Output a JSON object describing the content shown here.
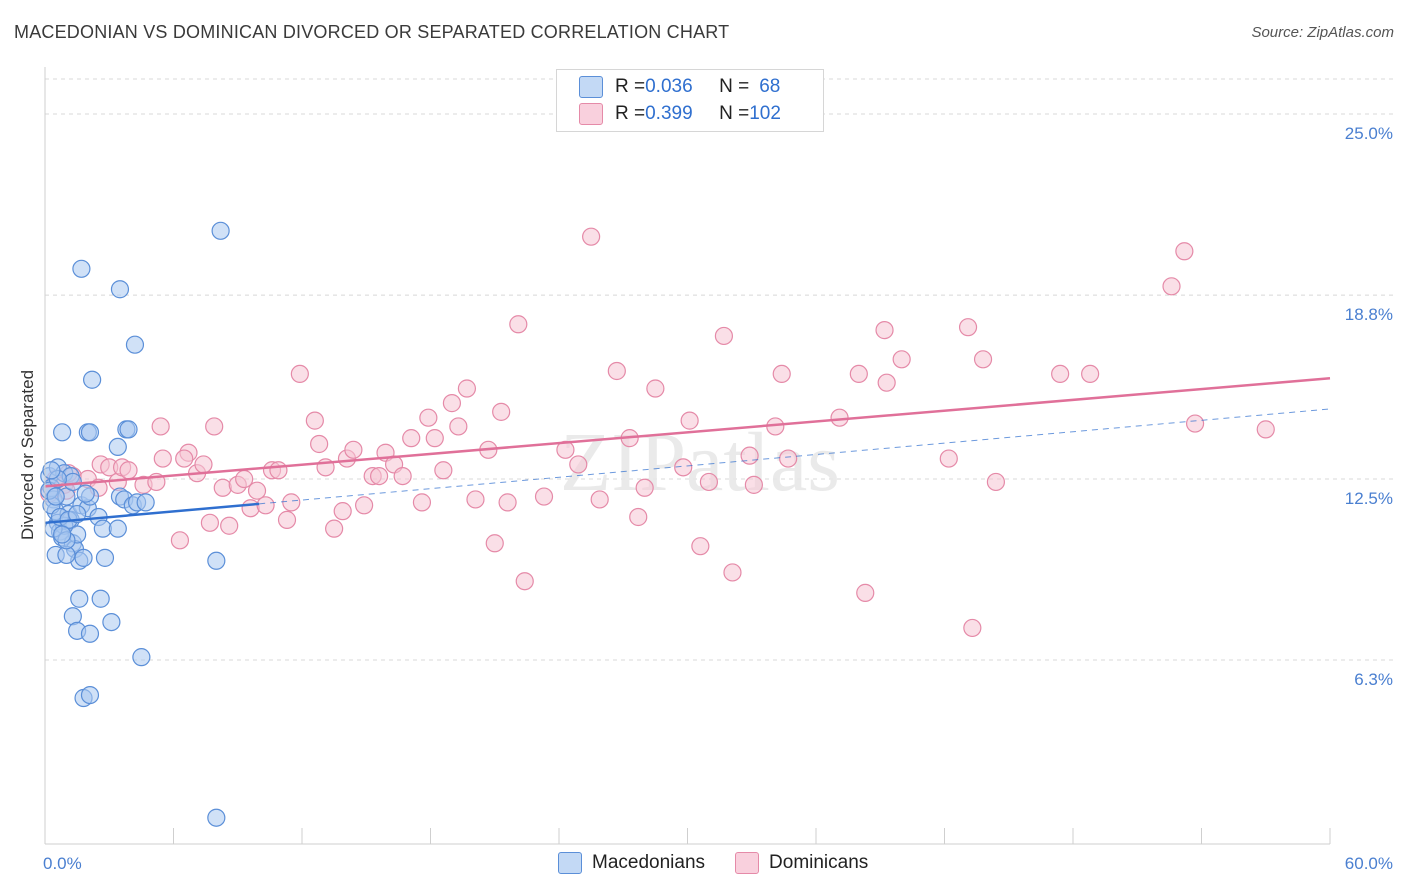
{
  "title": "MACEDONIAN VS DOMINICAN DIVORCED OR SEPARATED CORRELATION CHART",
  "source": "Source: ZipAtlas.com",
  "watermark": "ZIPatlas",
  "colors": {
    "blue_fill": "#a9c8f0",
    "blue_stroke": "#5b8fd8",
    "blue_line": "#2f6fcf",
    "pink_fill": "#f6c4d4",
    "pink_stroke": "#e58aa8",
    "pink_line": "#e07099",
    "tick_text": "#4a7fd0",
    "grid": "#d8d8d8"
  },
  "legend": {
    "rows": [
      {
        "r_label": "R = ",
        "r_value": "0.036",
        "n_label": "N = ",
        "n_value": "68"
      },
      {
        "r_label": "R = ",
        "r_value": "0.399",
        "n_label": "N = ",
        "n_value": "102"
      }
    ]
  },
  "bottom_legend": {
    "items": [
      "Macedonians",
      "Dominicans"
    ]
  },
  "chart_data": {
    "type": "scatter",
    "title": "MACEDONIAN VS DOMINICAN DIVORCED OR SEPARATED CORRELATION CHART",
    "xlabel": "",
    "ylabel": "Divorced or Separated",
    "xlim": [
      0,
      60
    ],
    "ylim": [
      0,
      26.2
    ],
    "x_tick_labels": [
      "0.0%",
      "60.0%"
    ],
    "y_ticks": [
      {
        "value": 6.3,
        "label": "6.3%"
      },
      {
        "value": 12.5,
        "label": "12.5%"
      },
      {
        "value": 18.8,
        "label": "18.8%"
      },
      {
        "value": 25.0,
        "label": "25.0%"
      }
    ],
    "grid": true,
    "series": [
      {
        "name": "Macedonians",
        "R": 0.036,
        "N": 68,
        "trend_solid": [
          [
            0,
            11.0
          ],
          [
            10,
            11.65
          ]
        ],
        "trend_dashed": [
          [
            10,
            11.65
          ],
          [
            60,
            14.9
          ]
        ],
        "points": [
          [
            0.2,
            12.6
          ],
          [
            0.3,
            12.2
          ],
          [
            0.4,
            11.8
          ],
          [
            0.5,
            11.4
          ],
          [
            0.3,
            11.6
          ],
          [
            0.6,
            11.0
          ],
          [
            0.7,
            10.7
          ],
          [
            0.8,
            10.5
          ],
          [
            0.6,
            12.9
          ],
          [
            0.9,
            12.7
          ],
          [
            1.0,
            11.9
          ],
          [
            1.1,
            11.3
          ],
          [
            1.2,
            11.1
          ],
          [
            1.3,
            10.3
          ],
          [
            1.4,
            10.1
          ],
          [
            1.5,
            10.6
          ],
          [
            1.6,
            9.7
          ],
          [
            1.8,
            9.8
          ],
          [
            1.7,
            11.6
          ],
          [
            2.0,
            11.5
          ],
          [
            2.1,
            11.9
          ],
          [
            0.9,
            10.9
          ],
          [
            0.5,
            9.9
          ],
          [
            1.0,
            9.9
          ],
          [
            0.8,
            14.1
          ],
          [
            1.9,
            12.0
          ],
          [
            2.5,
            11.2
          ],
          [
            2.7,
            10.8
          ],
          [
            3.4,
            10.8
          ],
          [
            3.5,
            11.9
          ],
          [
            2.8,
            9.8
          ],
          [
            1.2,
            12.6
          ],
          [
            1.7,
            19.7
          ],
          [
            3.5,
            19.0
          ],
          [
            4.2,
            17.1
          ],
          [
            2.2,
            15.9
          ],
          [
            2.0,
            14.1
          ],
          [
            2.1,
            14.1
          ],
          [
            3.8,
            14.2
          ],
          [
            3.9,
            14.2
          ],
          [
            3.4,
            13.6
          ],
          [
            1.3,
            12.4
          ],
          [
            3.7,
            11.8
          ],
          [
            4.1,
            11.6
          ],
          [
            4.3,
            11.7
          ],
          [
            4.7,
            11.7
          ],
          [
            8.2,
            21.0
          ],
          [
            8.0,
            9.7
          ],
          [
            1.6,
            8.4
          ],
          [
            2.6,
            8.4
          ],
          [
            1.3,
            7.8
          ],
          [
            3.1,
            7.6
          ],
          [
            1.5,
            7.3
          ],
          [
            2.1,
            7.2
          ],
          [
            4.5,
            6.4
          ],
          [
            1.8,
            5.0
          ],
          [
            2.1,
            5.1
          ],
          [
            8.0,
            0.9
          ],
          [
            0.4,
            10.8
          ],
          [
            0.7,
            11.2
          ],
          [
            1.1,
            11.1
          ],
          [
            0.2,
            12.1
          ],
          [
            0.6,
            12.5
          ],
          [
            1.0,
            10.4
          ],
          [
            0.3,
            12.8
          ],
          [
            1.5,
            11.3
          ],
          [
            0.8,
            10.6
          ],
          [
            0.5,
            11.9
          ]
        ]
      },
      {
        "name": "Dominicans",
        "R": 0.399,
        "N": 102,
        "trend_solid": [
          [
            0,
            12.25
          ],
          [
            60,
            15.95
          ]
        ],
        "points": [
          [
            0.5,
            12.5
          ],
          [
            0.9,
            12.3
          ],
          [
            1.3,
            12.6
          ],
          [
            1.0,
            12.1
          ],
          [
            2.0,
            12.5
          ],
          [
            2.5,
            12.2
          ],
          [
            2.6,
            13.0
          ],
          [
            3.0,
            12.9
          ],
          [
            3.4,
            12.4
          ],
          [
            3.6,
            12.9
          ],
          [
            3.9,
            12.8
          ],
          [
            4.6,
            12.3
          ],
          [
            5.2,
            12.4
          ],
          [
            5.4,
            14.3
          ],
          [
            5.5,
            13.2
          ],
          [
            6.3,
            10.4
          ],
          [
            6.7,
            13.4
          ],
          [
            6.5,
            13.2
          ],
          [
            7.1,
            12.7
          ],
          [
            7.4,
            13.0
          ],
          [
            7.7,
            11.0
          ],
          [
            7.9,
            14.3
          ],
          [
            8.3,
            12.2
          ],
          [
            8.6,
            10.9
          ],
          [
            9.0,
            12.3
          ],
          [
            9.3,
            12.5
          ],
          [
            9.6,
            11.5
          ],
          [
            9.9,
            12.1
          ],
          [
            10.3,
            11.6
          ],
          [
            10.6,
            12.8
          ],
          [
            10.9,
            12.8
          ],
          [
            11.3,
            11.1
          ],
          [
            11.5,
            11.7
          ],
          [
            11.9,
            16.1
          ],
          [
            12.6,
            14.5
          ],
          [
            12.8,
            13.7
          ],
          [
            13.1,
            12.9
          ],
          [
            13.5,
            10.8
          ],
          [
            13.9,
            11.4
          ],
          [
            14.1,
            13.2
          ],
          [
            14.4,
            13.5
          ],
          [
            14.9,
            11.6
          ],
          [
            15.3,
            12.6
          ],
          [
            15.6,
            12.6
          ],
          [
            15.9,
            13.4
          ],
          [
            16.3,
            13.0
          ],
          [
            16.7,
            12.6
          ],
          [
            17.1,
            13.9
          ],
          [
            17.6,
            11.7
          ],
          [
            17.9,
            14.6
          ],
          [
            18.2,
            13.9
          ],
          [
            18.6,
            12.8
          ],
          [
            19.0,
            15.1
          ],
          [
            19.3,
            14.3
          ],
          [
            19.7,
            15.6
          ],
          [
            20.1,
            11.8
          ],
          [
            20.7,
            13.5
          ],
          [
            21.0,
            10.3
          ],
          [
            21.3,
            14.8
          ],
          [
            21.6,
            11.7
          ],
          [
            22.1,
            17.8
          ],
          [
            22.4,
            9.0
          ],
          [
            23.3,
            11.9
          ],
          [
            24.3,
            13.5
          ],
          [
            24.9,
            13.0
          ],
          [
            25.5,
            20.8
          ],
          [
            25.9,
            11.8
          ],
          [
            26.7,
            16.2
          ],
          [
            27.3,
            13.9
          ],
          [
            27.7,
            11.2
          ],
          [
            28.0,
            12.2
          ],
          [
            28.5,
            15.6
          ],
          [
            29.8,
            12.9
          ],
          [
            30.1,
            14.5
          ],
          [
            30.6,
            10.2
          ],
          [
            31.0,
            12.4
          ],
          [
            31.7,
            17.4
          ],
          [
            32.1,
            9.3
          ],
          [
            32.9,
            13.3
          ],
          [
            33.1,
            12.3
          ],
          [
            34.1,
            14.3
          ],
          [
            34.4,
            16.1
          ],
          [
            34.7,
            13.2
          ],
          [
            37.1,
            14.6
          ],
          [
            38.0,
            16.1
          ],
          [
            38.3,
            8.6
          ],
          [
            39.2,
            17.6
          ],
          [
            39.3,
            15.8
          ],
          [
            40.0,
            16.6
          ],
          [
            42.2,
            13.2
          ],
          [
            43.1,
            17.7
          ],
          [
            43.3,
            7.4
          ],
          [
            43.8,
            16.6
          ],
          [
            44.4,
            12.4
          ],
          [
            47.4,
            16.1
          ],
          [
            48.8,
            16.1
          ],
          [
            52.6,
            19.1
          ],
          [
            53.2,
            20.3
          ],
          [
            53.7,
            14.4
          ],
          [
            57.0,
            14.2
          ],
          [
            1.1,
            12.7
          ],
          [
            0.2,
            12.0
          ]
        ]
      }
    ]
  }
}
